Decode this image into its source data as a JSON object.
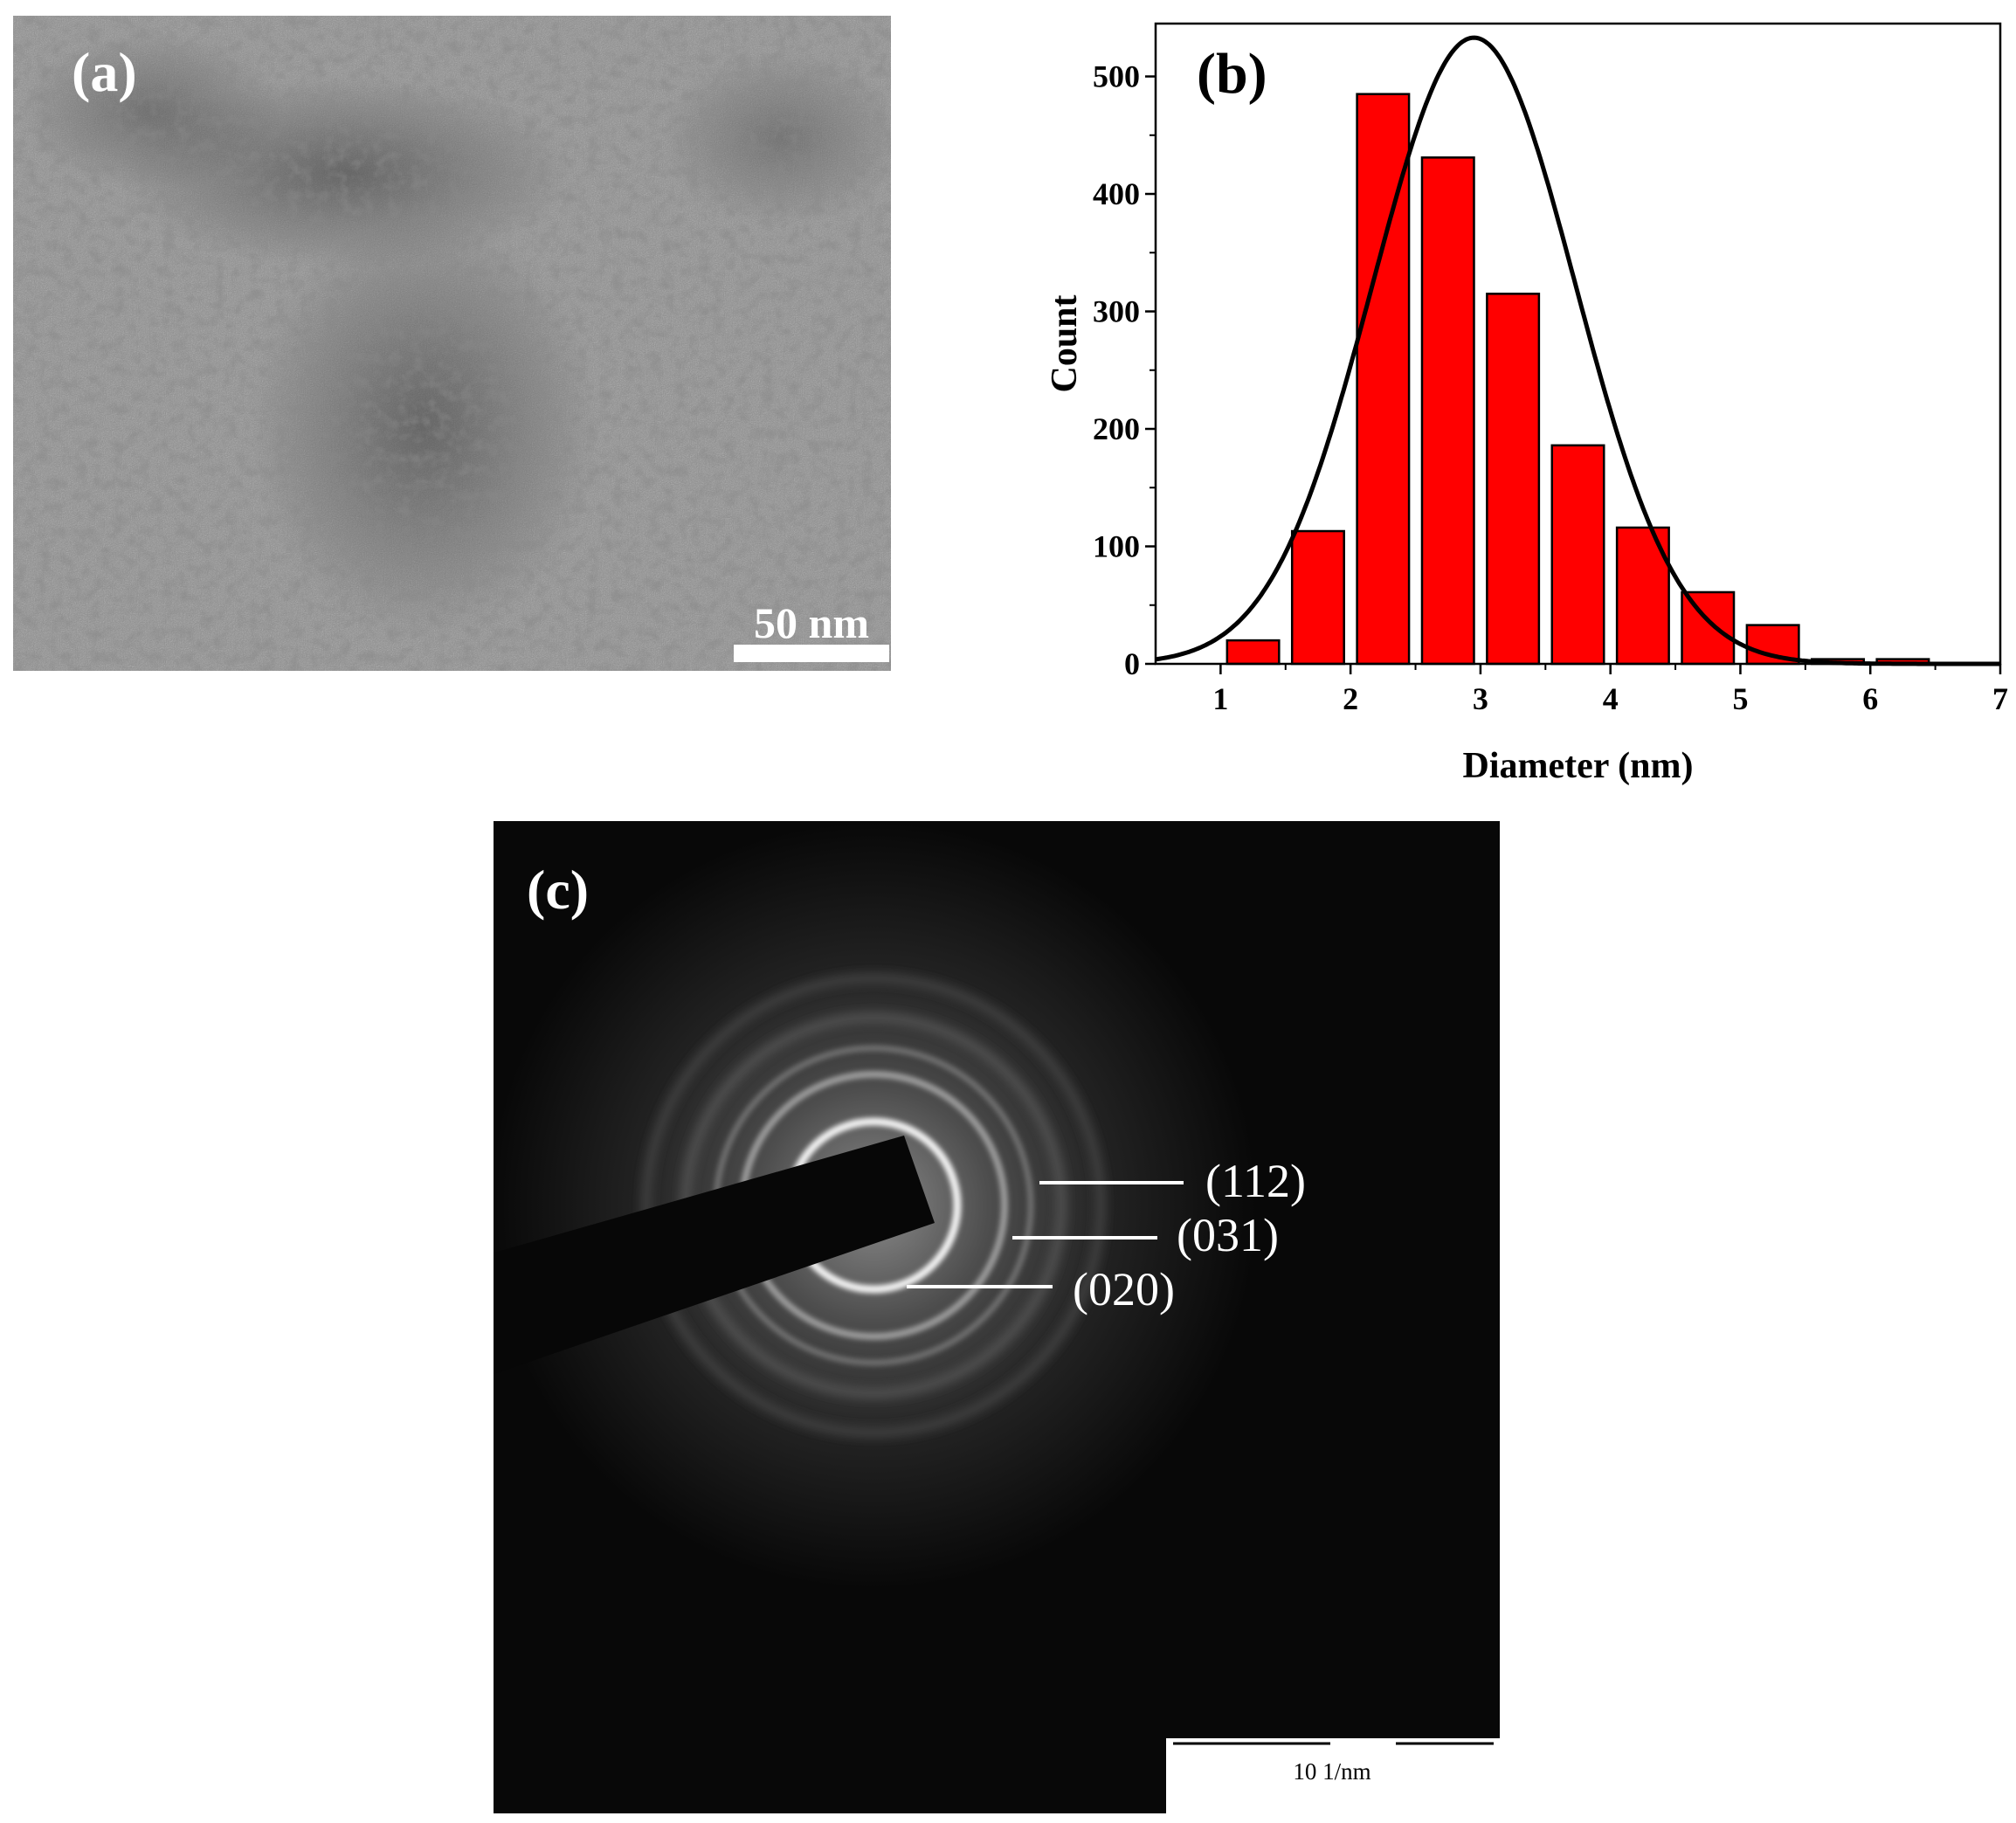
{
  "figure": {
    "panel_a": {
      "label": "(a)",
      "scale_bar_label": "50 nm"
    },
    "panel_b": {
      "label": "(b)",
      "chart_data": {
        "type": "bar",
        "categories": [
          "1.25",
          "1.75",
          "2.25",
          "2.75",
          "3.25",
          "3.75",
          "4.25",
          "4.75",
          "5.25",
          "5.75",
          "6.25"
        ],
        "x": [
          1.25,
          1.75,
          2.25,
          2.75,
          3.25,
          3.75,
          4.25,
          4.75,
          5.25,
          5.75,
          6.25
        ],
        "values": [
          20,
          113,
          485,
          431,
          315,
          186,
          116,
          61,
          33,
          4,
          4
        ],
        "bar_width": 0.4,
        "fit_curve": {
          "type": "gaussian",
          "center": 2.95,
          "amplitude": 533,
          "sigma": 0.78
        },
        "xlabel": "Diameter (nm)",
        "ylabel": "Count",
        "xlim": [
          0.5,
          7
        ],
        "ylim": [
          0,
          545
        ],
        "xticks": [
          1,
          2,
          3,
          4,
          5,
          6,
          7
        ],
        "yticks": [
          0,
          100,
          200,
          300,
          400,
          500
        ],
        "bar_color": "#ff0000",
        "curve_color": "#000000",
        "grid": false
      }
    },
    "panel_c": {
      "label": "(c)",
      "ring_labels": [
        "(112)",
        "(031)",
        "(020)"
      ],
      "scale_bar_label": "10 1/nm"
    }
  }
}
